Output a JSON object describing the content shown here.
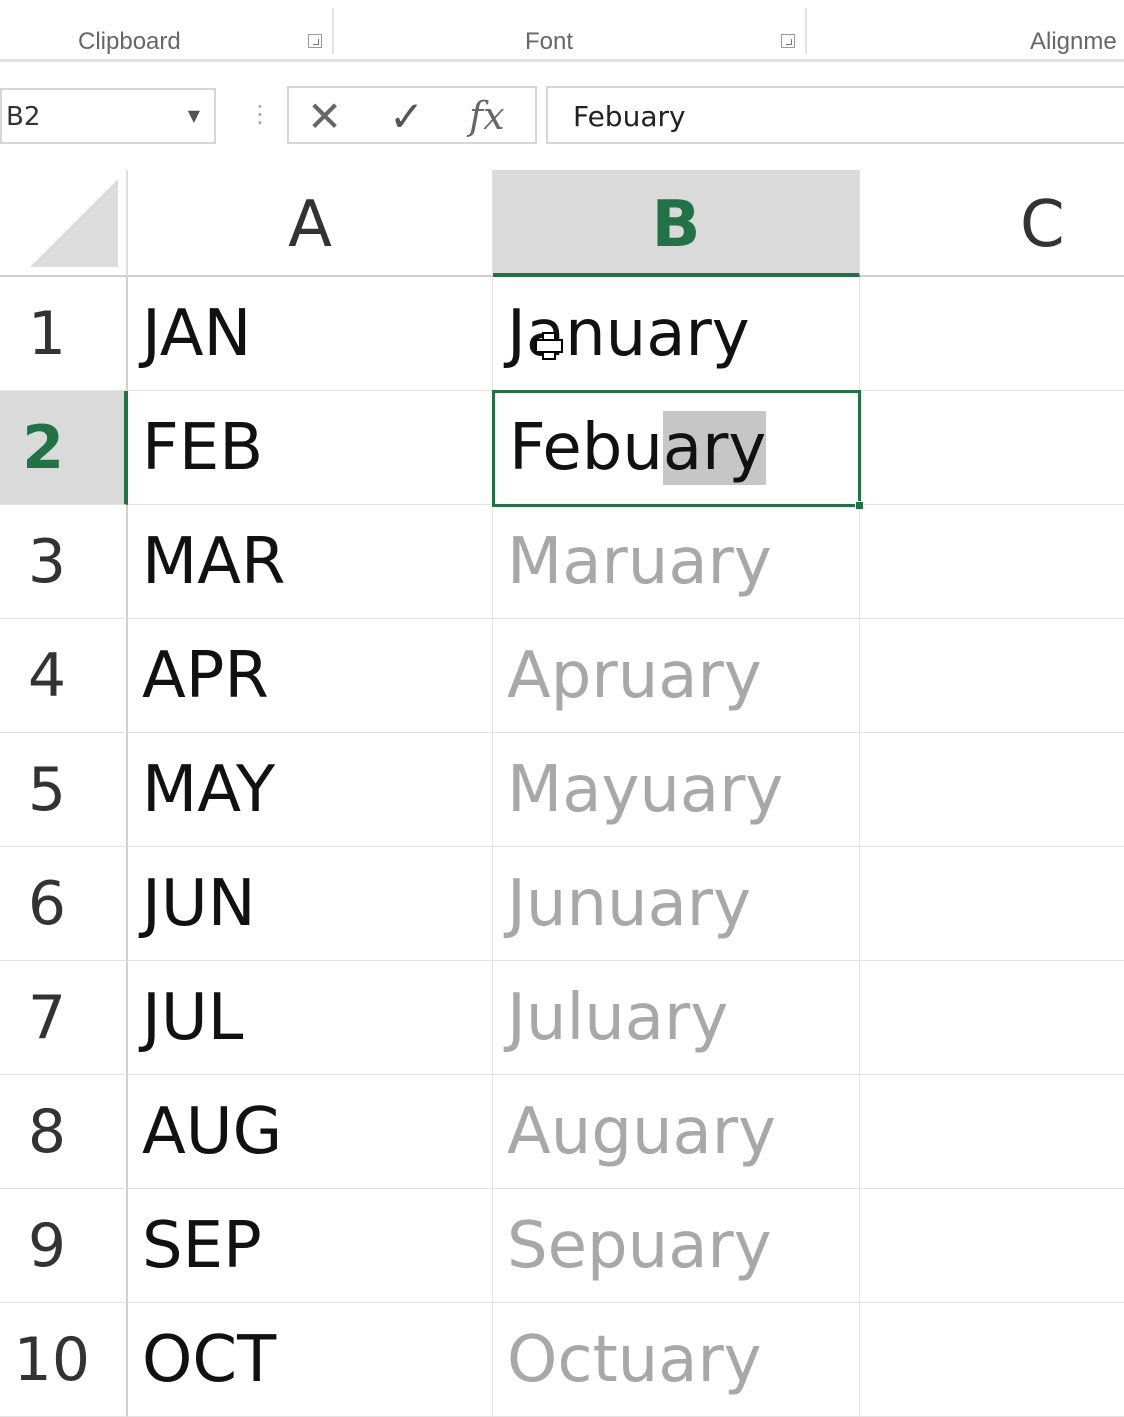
{
  "ribbon": {
    "groups": [
      "Clipboard",
      "Font",
      "Alignme"
    ]
  },
  "formula_bar": {
    "name_box": "B2",
    "cancel_icon": "✕",
    "enter_icon": "✓",
    "fx_icon": "fx",
    "value": "Febuary"
  },
  "columns": [
    "A",
    "B",
    "C"
  ],
  "selected_column": "B",
  "selected_row": "2",
  "rows": [
    {
      "num": "1",
      "a": "JAN",
      "b": "January"
    },
    {
      "num": "2",
      "a": "FEB",
      "b_typed": "Febu",
      "b_autocomplete": "ary"
    },
    {
      "num": "3",
      "a": "MAR",
      "b": "Maruary"
    },
    {
      "num": "4",
      "a": "APR",
      "b": "Apruary"
    },
    {
      "num": "5",
      "a": "MAY",
      "b": "Mayuary"
    },
    {
      "num": "6",
      "a": "JUN",
      "b": "Junuary"
    },
    {
      "num": "7",
      "a": "JUL",
      "b": "Juluary"
    },
    {
      "num": "8",
      "a": "AUG",
      "b": "Auguary"
    },
    {
      "num": "9",
      "a": "SEP",
      "b": "Sepuary"
    },
    {
      "num": "10",
      "a": "OCT",
      "b": "Octuary"
    }
  ],
  "colors": {
    "accent": "#217346",
    "flash_fill_preview": "#a8a8a8"
  }
}
